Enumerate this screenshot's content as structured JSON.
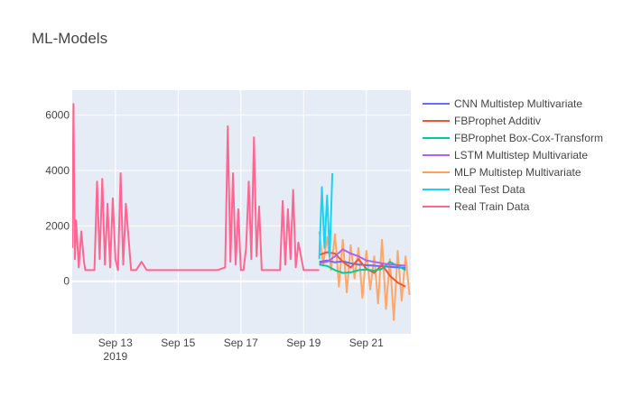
{
  "chart_data": {
    "type": "line",
    "title": "ML-Models",
    "xlabel": "",
    "ylabel": "",
    "x_start": "2019-09-11 15:00",
    "x_end": "2019-09-22 10:00",
    "xlim": [
      "2019-09-11 15:00",
      "2019-09-22 10:00"
    ],
    "ylim": [
      -1900,
      6900
    ],
    "x_ticks": [
      {
        "date": "2019-09-13",
        "label": "Sep 13",
        "sublabel": "2019"
      },
      {
        "date": "2019-09-15",
        "label": "Sep 15",
        "sublabel": ""
      },
      {
        "date": "2019-09-17",
        "label": "Sep 17",
        "sublabel": ""
      },
      {
        "date": "2019-09-19",
        "label": "Sep 19",
        "sublabel": ""
      },
      {
        "date": "2019-09-21",
        "label": "Sep 21",
        "sublabel": ""
      }
    ],
    "y_ticks": [
      0,
      2000,
      4000,
      6000
    ],
    "y_tick_labels": [
      "0",
      "2000",
      "4000",
      "6000"
    ],
    "grid": true,
    "legend_position": "right",
    "background": "#e5ecf6",
    "series": [
      {
        "name": "CNN Multistep Multivariate",
        "color": "#636efa",
        "x": [
          "2019-09-19 12:00",
          "2019-09-19 18:00",
          "2019-09-20 00:00",
          "2019-09-20 06:00",
          "2019-09-20 12:00",
          "2019-09-20 18:00",
          "2019-09-21 00:00",
          "2019-09-21 06:00",
          "2019-09-21 12:00",
          "2019-09-21 18:00",
          "2019-09-22 00:00",
          "2019-09-22 06:00"
        ],
        "y": [
          700,
          750,
          680,
          720,
          650,
          600,
          580,
          560,
          540,
          520,
          500,
          480
        ]
      },
      {
        "name": "FBProphet Additiv",
        "color": "#ef553b",
        "x": [
          "2019-09-19 12:00",
          "2019-09-19 18:00",
          "2019-09-20 00:00",
          "2019-09-20 06:00",
          "2019-09-20 12:00",
          "2019-09-20 18:00",
          "2019-09-21 00:00",
          "2019-09-21 06:00",
          "2019-09-21 12:00",
          "2019-09-21 18:00",
          "2019-09-22 00:00",
          "2019-09-22 06:00"
        ],
        "y": [
          950,
          1050,
          1000,
          700,
          500,
          800,
          450,
          300,
          600,
          200,
          -50,
          -200
        ]
      },
      {
        "name": "FBProphet Box-Cox-Transform",
        "color": "#00cc96",
        "x": [
          "2019-09-19 12:00",
          "2019-09-19 18:00",
          "2019-09-20 00:00",
          "2019-09-20 06:00",
          "2019-09-20 12:00",
          "2019-09-20 18:00",
          "2019-09-21 00:00",
          "2019-09-21 06:00",
          "2019-09-21 12:00",
          "2019-09-21 18:00",
          "2019-09-22 00:00",
          "2019-09-22 06:00"
        ],
        "y": [
          600,
          550,
          400,
          300,
          320,
          400,
          420,
          380,
          450,
          700,
          550,
          400
        ]
      },
      {
        "name": "LSTM Multistep Multivariate",
        "color": "#ab63fa",
        "x": [
          "2019-09-19 12:00",
          "2019-09-19 18:00",
          "2019-09-20 00:00",
          "2019-09-20 06:00",
          "2019-09-20 12:00",
          "2019-09-20 18:00",
          "2019-09-21 00:00",
          "2019-09-21 06:00",
          "2019-09-21 12:00",
          "2019-09-21 18:00",
          "2019-09-22 00:00",
          "2019-09-22 06:00"
        ],
        "y": [
          650,
          700,
          900,
          1150,
          1000,
          900,
          750,
          700,
          650,
          600,
          580,
          560
        ]
      },
      {
        "name": "MLP Multistep Multivariate",
        "color": "#ffa15a",
        "x": [
          "2019-09-19 12:00",
          "2019-09-19 15:00",
          "2019-09-19 18:00",
          "2019-09-19 21:00",
          "2019-09-20 00:00",
          "2019-09-20 03:00",
          "2019-09-20 06:00",
          "2019-09-20 09:00",
          "2019-09-20 12:00",
          "2019-09-20 15:00",
          "2019-09-20 18:00",
          "2019-09-20 21:00",
          "2019-09-21 00:00",
          "2019-09-21 03:00",
          "2019-09-21 06:00",
          "2019-09-21 09:00",
          "2019-09-21 12:00",
          "2019-09-21 15:00",
          "2019-09-21 18:00",
          "2019-09-21 21:00",
          "2019-09-22 00:00",
          "2019-09-22 03:00",
          "2019-09-22 06:00",
          "2019-09-22 09:00"
        ],
        "y": [
          1800,
          600,
          1600,
          400,
          1700,
          -200,
          1500,
          -400,
          1300,
          100,
          1200,
          -600,
          1100,
          -300,
          900,
          -800,
          1500,
          -1000,
          800,
          -1400,
          1100,
          -700,
          900,
          -500
        ]
      },
      {
        "name": "Real Test Data",
        "color": "#19d3f3",
        "x": [
          "2019-09-19 12:00",
          "2019-09-19 14:00",
          "2019-09-19 16:00",
          "2019-09-19 18:00",
          "2019-09-19 20:00",
          "2019-09-19 22:00"
        ],
        "y": [
          800,
          3400,
          1200,
          3100,
          900,
          3900
        ]
      },
      {
        "name": "Real Train Data",
        "color": "#ff6692",
        "x": [
          "2019-09-11 15:00",
          "2019-09-11 16:00",
          "2019-09-11 17:00",
          "2019-09-11 18:00",
          "2019-09-11 20:00",
          "2019-09-11 22:00",
          "2019-09-12 00:00",
          "2019-09-12 01:00",
          "2019-09-12 03:00",
          "2019-09-12 05:00",
          "2019-09-12 08:00",
          "2019-09-12 10:00",
          "2019-09-12 12:00",
          "2019-09-12 14:00",
          "2019-09-12 16:00",
          "2019-09-12 18:00",
          "2019-09-12 20:00",
          "2019-09-12 22:00",
          "2019-09-13 00:00",
          "2019-09-13 02:00",
          "2019-09-13 04:00",
          "2019-09-13 06:00",
          "2019-09-13 08:00",
          "2019-09-13 12:00",
          "2019-09-13 16:00",
          "2019-09-13 20:00",
          "2019-09-14 00:00",
          "2019-09-15 00:00",
          "2019-09-16 00:00",
          "2019-09-16 06:00",
          "2019-09-16 12:00",
          "2019-09-16 14:00",
          "2019-09-16 16:00",
          "2019-09-16 18:00",
          "2019-09-16 20:00",
          "2019-09-16 22:00",
          "2019-09-17 00:00",
          "2019-09-17 02:00",
          "2019-09-17 04:00",
          "2019-09-17 06:00",
          "2019-09-17 08:00",
          "2019-09-17 10:00",
          "2019-09-17 12:00",
          "2019-09-17 14:00",
          "2019-09-17 16:00",
          "2019-09-17 20:00",
          "2019-09-18 00:00",
          "2019-09-18 06:00",
          "2019-09-18 08:00",
          "2019-09-18 10:00",
          "2019-09-18 12:00",
          "2019-09-18 14:00",
          "2019-09-18 16:00",
          "2019-09-18 18:00",
          "2019-09-18 20:00",
          "2019-09-19 00:00",
          "2019-09-19 06:00",
          "2019-09-19 12:00"
        ],
        "y": [
          1200,
          6400,
          800,
          2200,
          500,
          1800,
          700,
          400,
          400,
          400,
          400,
          3600,
          800,
          3700,
          600,
          2800,
          500,
          3000,
          800,
          400,
          3900,
          600,
          2800,
          400,
          400,
          700,
          400,
          400,
          400,
          400,
          500,
          5600,
          700,
          3900,
          600,
          2600,
          400,
          400,
          1200,
          3600,
          800,
          5200,
          900,
          2700,
          400,
          400,
          400,
          400,
          2900,
          600,
          2600,
          800,
          3300,
          500,
          1400,
          400,
          400,
          400
        ]
      }
    ]
  }
}
